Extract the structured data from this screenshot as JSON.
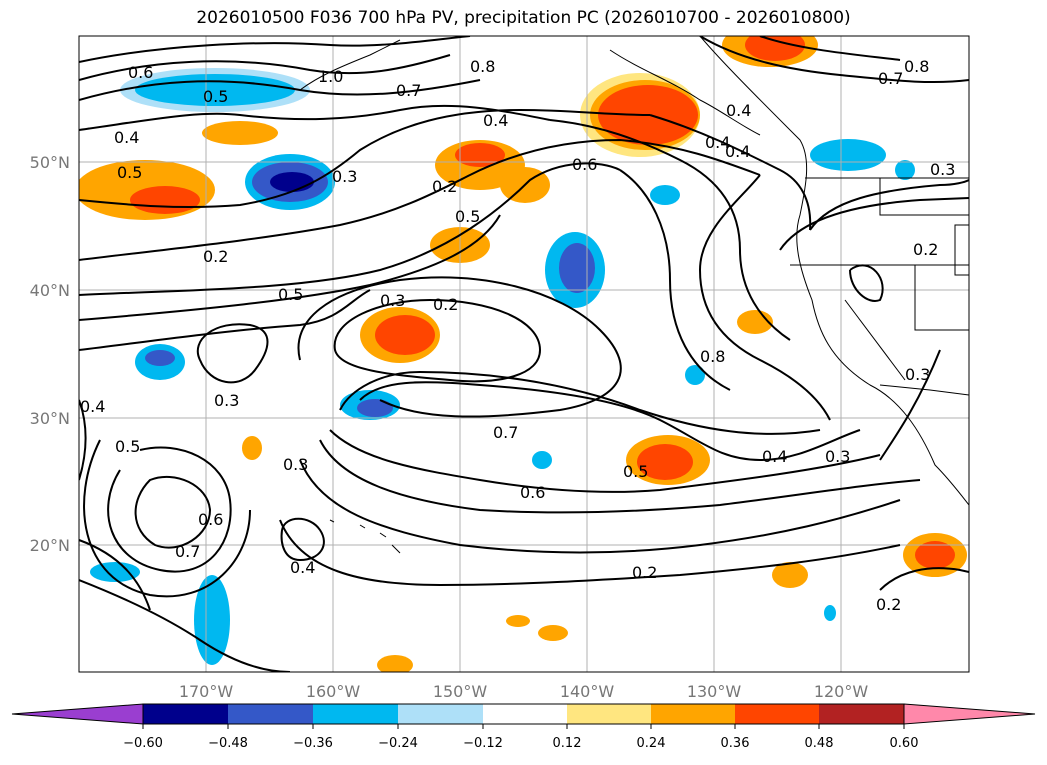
{
  "title": "2026010500 F036 700 hPa PV, precipitation PC (2026010700 - 2026010800)",
  "map": {
    "lat_ticks": [
      "50°N",
      "40°N",
      "30°N",
      "20°N"
    ],
    "lon_ticks": [
      "170°W",
      "160°W",
      "150°W",
      "140°W",
      "130°W",
      "120°W"
    ],
    "contour_labels": [
      "0.6",
      "1.0",
      "0.8",
      "0.7",
      "0.5",
      "0.4",
      "0.5",
      "0.3",
      "0.2",
      "0.4",
      "0.6",
      "0.4",
      "0.4",
      "0.7",
      "0.8",
      "0.2",
      "0.5",
      "0.2",
      "0.3",
      "0.2",
      "0.5",
      "0.3",
      "0.4",
      "0.3",
      "0.8",
      "0.3",
      "0.7",
      "0.5",
      "0.6",
      "0.4",
      "0.3",
      "0.5",
      "0.3",
      "0.6",
      "0.7",
      "0.4",
      "0.2",
      "0.2",
      "0.4"
    ],
    "line_color": "#000000",
    "grid_color": "#b0b0b0"
  },
  "colorbar": {
    "ticks": [
      "−0.60",
      "−0.48",
      "−0.36",
      "−0.24",
      "−0.12",
      "0.12",
      "0.24",
      "0.36",
      "0.48",
      "0.60"
    ],
    "colors": [
      "#9a3ed0",
      "#00008c",
      "#3458c8",
      "#00b8f0",
      "#aee0f8",
      "#ffffff",
      "#ffe680",
      "#ffa500",
      "#ff4500",
      "#b22222",
      "#ff88aa"
    ]
  }
}
